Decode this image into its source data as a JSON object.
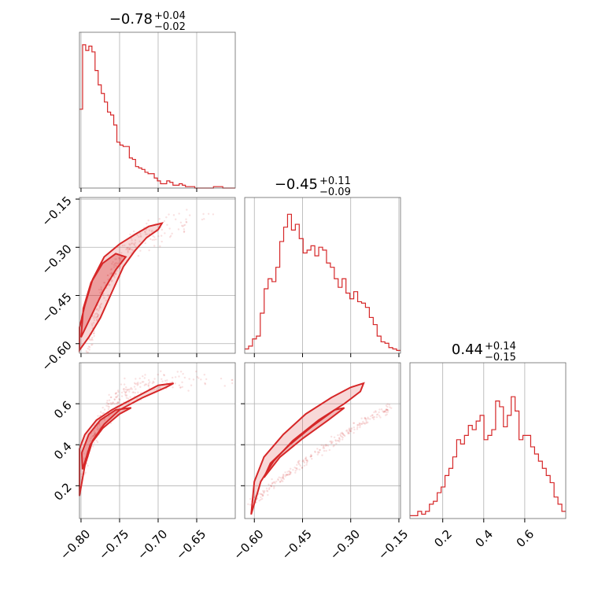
{
  "chart_data": {
    "type": "corner",
    "color": "#d62728",
    "parameters": [
      {
        "median": -0.78,
        "upper_err": 0.04,
        "lower_err": 0.02,
        "range": [
          -0.802,
          -0.6
        ],
        "title_main": "−0.78",
        "title_sup": "+0.04",
        "title_sub": "−0.02",
        "ticks": [
          -0.8,
          -0.75,
          -0.7,
          -0.65
        ],
        "tick_labels": [
          "−0.80",
          "−0.75",
          "−0.70",
          "−0.65"
        ]
      },
      {
        "median": -0.45,
        "upper_err": 0.11,
        "lower_err": 0.09,
        "range": [
          -0.63,
          -0.145
        ],
        "title_main": "−0.45",
        "title_sup": "+0.11",
        "title_sub": "−0.09",
        "ticks": [
          -0.6,
          -0.45,
          -0.3,
          -0.15
        ],
        "tick_labels": [
          "−0.60",
          "−0.45",
          "−0.30",
          "−0.15"
        ]
      },
      {
        "median": 0.44,
        "upper_err": 0.14,
        "lower_err": 0.15,
        "range": [
          0.04,
          0.8
        ],
        "title_main": "0.44",
        "title_sup": "+0.14",
        "title_sub": "−0.15",
        "ticks": [
          0.2,
          0.4,
          0.6
        ],
        "tick_labels": [
          "0.2",
          "0.4",
          "0.6"
        ]
      }
    ],
    "histograms": [
      [
        0.55,
        1.0,
        0.96,
        0.99,
        0.95,
        0.82,
        0.72,
        0.66,
        0.6,
        0.53,
        0.51,
        0.44,
        0.32,
        0.3,
        0.29,
        0.29,
        0.21,
        0.2,
        0.15,
        0.14,
        0.13,
        0.11,
        0.1,
        0.1,
        0.07,
        0.05,
        0.03,
        0.03,
        0.05,
        0.04,
        0.02,
        0.02,
        0.03,
        0.02,
        0.01,
        0.01,
        0.01,
        0.0,
        0.0,
        0.0,
        0.0,
        0.0,
        0.0,
        0.01,
        0.01,
        0.01,
        0.0,
        0.0,
        0.0,
        0.0
      ],
      [
        0.03,
        0.05,
        0.1,
        0.12,
        0.28,
        0.45,
        0.52,
        0.5,
        0.6,
        0.78,
        0.88,
        0.97,
        0.86,
        0.9,
        0.8,
        0.7,
        0.72,
        0.75,
        0.68,
        0.74,
        0.72,
        0.63,
        0.6,
        0.52,
        0.46,
        0.52,
        0.42,
        0.38,
        0.43,
        0.36,
        0.35,
        0.32,
        0.25,
        0.2,
        0.12,
        0.08,
        0.07,
        0.04,
        0.03,
        0.02
      ],
      [
        0.02,
        0.02,
        0.05,
        0.03,
        0.05,
        0.1,
        0.12,
        0.18,
        0.22,
        0.3,
        0.35,
        0.43,
        0.55,
        0.52,
        0.58,
        0.65,
        0.62,
        0.68,
        0.72,
        0.55,
        0.58,
        0.62,
        0.82,
        0.78,
        0.64,
        0.72,
        0.85,
        0.75,
        0.55,
        0.58,
        0.58,
        0.5,
        0.45,
        0.4,
        0.35,
        0.3,
        0.25,
        0.15,
        0.1,
        0.05
      ]
    ]
  }
}
